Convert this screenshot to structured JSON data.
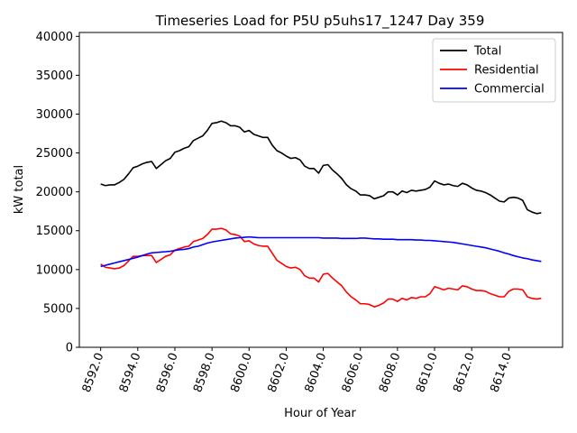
{
  "chart_data": {
    "type": "line",
    "title": "Timeseries Load for P5U p5uhs17_1247  Day 359",
    "xlabel": "Hour of Year",
    "ylabel": "kW total",
    "xlim": [
      8590.85,
      8616.9
    ],
    "ylim": [
      0,
      40500
    ],
    "xticks": [
      8592,
      8594,
      8596,
      8598,
      8600,
      8602,
      8604,
      8606,
      8608,
      8610,
      8612,
      8614
    ],
    "xtick_labels": [
      "8592.0",
      "8594.0",
      "8596.0",
      "8598.0",
      "8600.0",
      "8602.0",
      "8604.0",
      "8606.0",
      "8608.0",
      "8610.0",
      "8612.0",
      "8614.0"
    ],
    "yticks": [
      0,
      5000,
      10000,
      15000,
      20000,
      25000,
      30000,
      35000,
      40000
    ],
    "ytick_labels": [
      "0",
      "5000",
      "10000",
      "15000",
      "20000",
      "25000",
      "30000",
      "35000",
      "40000"
    ],
    "legend_position": "top-right",
    "x": [
      8592,
      8592.25,
      8592.5,
      8592.75,
      8593,
      8593.25,
      8593.5,
      8593.75,
      8594,
      8594.25,
      8594.5,
      8594.75,
      8595,
      8595.25,
      8595.5,
      8595.75,
      8596,
      8596.25,
      8596.5,
      8596.75,
      8597,
      8597.25,
      8597.5,
      8597.75,
      8598,
      8598.25,
      8598.5,
      8598.75,
      8599,
      8599.25,
      8599.5,
      8599.75,
      8600,
      8600.25,
      8600.5,
      8600.75,
      8601,
      8601.25,
      8601.5,
      8601.75,
      8602,
      8602.25,
      8602.5,
      8602.75,
      8603,
      8603.25,
      8603.5,
      8603.75,
      8604,
      8604.25,
      8604.5,
      8604.75,
      8605,
      8605.25,
      8605.5,
      8605.75,
      8606,
      8606.25,
      8606.5,
      8606.75,
      8607,
      8607.25,
      8607.5,
      8607.75,
      8608,
      8608.25,
      8608.5,
      8608.75,
      8609,
      8609.25,
      8609.5,
      8609.75,
      8610,
      8610.25,
      8610.5,
      8610.75,
      8611,
      8611.25,
      8611.5,
      8611.75,
      8612,
      8612.25,
      8612.5,
      8612.75,
      8613,
      8613.25,
      8613.5,
      8613.75,
      8614,
      8614.25,
      8614.5,
      8614.75,
      8615,
      8615.25,
      8615.5,
      8615.75
    ],
    "series": [
      {
        "name": "Total",
        "color": "#000000",
        "values": [
          21000,
          20800,
          20900,
          20900,
          21200,
          21600,
          22300,
          23100,
          23300,
          23600,
          23800,
          23900,
          23000,
          23500,
          24000,
          24300,
          25100,
          25300,
          25600,
          25800,
          26600,
          26900,
          27200,
          27900,
          28800,
          28900,
          29100,
          28900,
          28500,
          28500,
          28300,
          27700,
          27900,
          27400,
          27200,
          27000,
          27000,
          26000,
          25300,
          25000,
          24600,
          24300,
          24400,
          24100,
          23300,
          23000,
          23000,
          22400,
          23400,
          23500,
          22800,
          22300,
          21700,
          20900,
          20400,
          20100,
          19600,
          19600,
          19500,
          19100,
          19300,
          19500,
          20000,
          20000,
          19600,
          20100,
          19900,
          20200,
          20100,
          20200,
          20300,
          20600,
          21400,
          21100,
          20900,
          21000,
          20800,
          20700,
          21100,
          20900,
          20500,
          20200,
          20100,
          19900,
          19600,
          19200,
          18800,
          18700,
          19200,
          19300,
          19200,
          18900,
          17700,
          17400,
          17200,
          17300
        ]
      },
      {
        "name": "Residential",
        "color": "#ff0000",
        "values": [
          10700,
          10300,
          10200,
          10100,
          10200,
          10500,
          11100,
          11700,
          11700,
          11800,
          11800,
          11800,
          10900,
          11300,
          11700,
          11900,
          12500,
          12700,
          12900,
          13000,
          13600,
          13800,
          14000,
          14500,
          15200,
          15200,
          15300,
          15100,
          14600,
          14500,
          14300,
          13600,
          13700,
          13300,
          13100,
          13000,
          13000,
          12100,
          11200,
          10800,
          10400,
          10200,
          10300,
          10000,
          9200,
          8900,
          8900,
          8400,
          9400,
          9500,
          8900,
          8400,
          7900,
          7100,
          6500,
          6100,
          5600,
          5600,
          5500,
          5200,
          5400,
          5700,
          6200,
          6200,
          5900,
          6300,
          6100,
          6400,
          6300,
          6500,
          6500,
          6900,
          7800,
          7600,
          7400,
          7600,
          7500,
          7400,
          7900,
          7800,
          7500,
          7300,
          7300,
          7200,
          6900,
          6700,
          6500,
          6500,
          7200,
          7500,
          7500,
          7400,
          6500,
          6300,
          6200,
          6300
        ]
      },
      {
        "name": "Commercial",
        "color": "#0000ff",
        "values": [
          10400,
          10550,
          10700,
          10850,
          11000,
          11150,
          11300,
          11450,
          11600,
          11800,
          12000,
          12150,
          12200,
          12250,
          12300,
          12350,
          12450,
          12550,
          12600,
          12700,
          12900,
          13000,
          13200,
          13400,
          13550,
          13650,
          13750,
          13850,
          13950,
          14050,
          14100,
          14150,
          14200,
          14150,
          14100,
          14100,
          14100,
          14100,
          14100,
          14100,
          14100,
          14100,
          14100,
          14100,
          14100,
          14100,
          14100,
          14100,
          14050,
          14050,
          14050,
          14050,
          14000,
          14000,
          14000,
          14000,
          14050,
          14050,
          14000,
          13950,
          13950,
          13900,
          13900,
          13900,
          13850,
          13850,
          13850,
          13850,
          13800,
          13800,
          13750,
          13750,
          13700,
          13650,
          13600,
          13550,
          13500,
          13400,
          13300,
          13200,
          13100,
          13000,
          12900,
          12800,
          12650,
          12500,
          12350,
          12150,
          12000,
          11800,
          11650,
          11500,
          11400,
          11250,
          11150,
          11050
        ]
      }
    ]
  }
}
